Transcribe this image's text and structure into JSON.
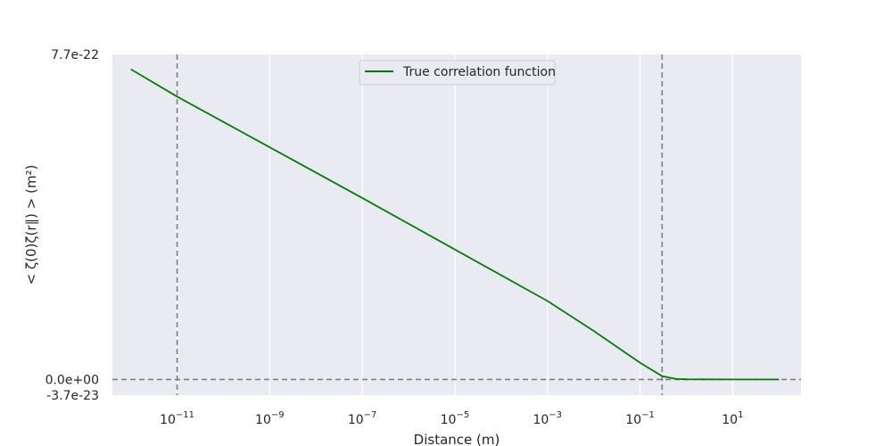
{
  "chart_data": {
    "type": "line",
    "xlabel": "Distance (m)",
    "ylabel": "< ζ(0)ζ(r∥) > (m²)",
    "x_scale": "log",
    "xlim": [
      4e-13,
      300
    ],
    "ylim": [
      -3.7e-23,
      7.7e-22
    ],
    "x_ticks": [
      {
        "value": 1e-11,
        "base": "10",
        "exp": "−11"
      },
      {
        "value": 1e-09,
        "base": "10",
        "exp": "−9"
      },
      {
        "value": 1e-07,
        "base": "10",
        "exp": "−7"
      },
      {
        "value": 1e-05,
        "base": "10",
        "exp": "−5"
      },
      {
        "value": 0.001,
        "base": "10",
        "exp": "−3"
      },
      {
        "value": 0.1,
        "base": "10",
        "exp": "−1"
      },
      {
        "value": 10,
        "base": "10",
        "exp": "1"
      }
    ],
    "y_ticks": [
      {
        "value": 7.7e-22,
        "label": "7.7e-22"
      },
      {
        "value": 0,
        "label": "0.0e+00"
      },
      {
        "value": -3.7e-23,
        "label": "-3.7e-23"
      }
    ],
    "grid": true,
    "legend_position": "top-center",
    "series": [
      {
        "name": "True correlation function",
        "color": "#008000",
        "x": [
          1e-12,
          1e-11,
          1e-09,
          1e-07,
          1e-05,
          0.001,
          0.01,
          0.1,
          0.3,
          0.6,
          1,
          10,
          100
        ],
        "y": [
          7.35e-22,
          6.7e-22,
          5.5e-22,
          4.3e-22,
          3.08e-22,
          1.86e-22,
          1.15e-22,
          4e-23,
          8e-24,
          1.5e-24,
          5e-25,
          2e-25,
          1e-25
        ]
      }
    ],
    "reference_lines": [
      {
        "orientation": "vertical",
        "value": 1e-11,
        "style": "dashed",
        "color": "#808080"
      },
      {
        "orientation": "vertical",
        "value": 0.3,
        "style": "dashed",
        "color": "#808080"
      },
      {
        "orientation": "horizontal",
        "value": 0,
        "style": "dashed",
        "color": "#808080"
      }
    ],
    "colors": {
      "plot_background": "#eaeaf2",
      "grid": "#ffffff",
      "text": "#262626"
    }
  }
}
